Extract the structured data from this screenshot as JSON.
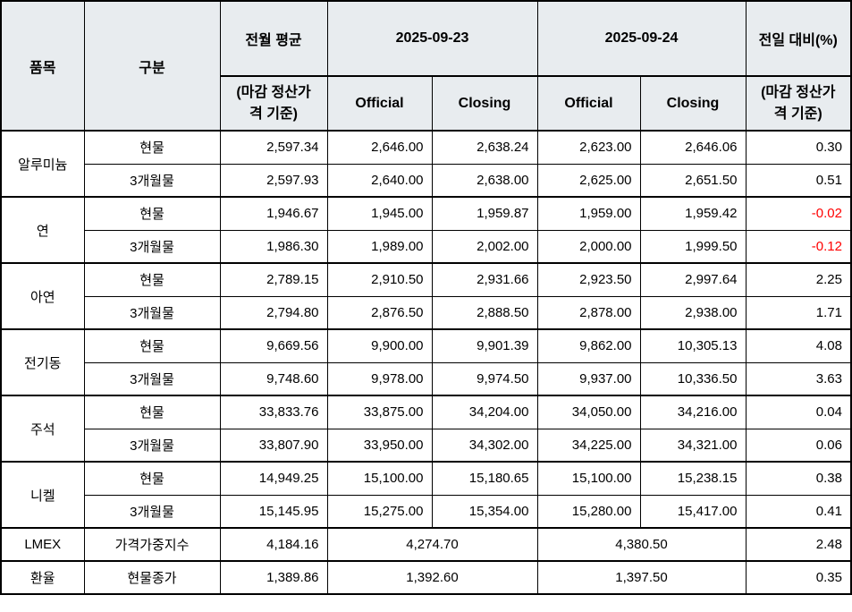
{
  "colors": {
    "header_bg": "#e8ecef",
    "border": "#000000",
    "text": "#000000",
    "negative": "#ff0000",
    "background": "#ffffff"
  },
  "chart_data": {
    "type": "table",
    "header": {
      "col_item": "품목",
      "col_category": "구분",
      "col_prev_avg": "전월 평균",
      "col_prev_avg_sub": "(마감 정산가\n격 기준)",
      "date1": "2025-09-23",
      "date2": "2025-09-24",
      "col_official": "Official",
      "col_closing": "Closing",
      "col_change": "전일 대비(%)",
      "col_change_sub": "(마감 정산가\n격 기준)"
    },
    "groups": [
      {
        "item": "알루미늄",
        "rows": [
          {
            "category": "현물",
            "prev_avg": "2,597.34",
            "d1_official": "2,646.00",
            "d1_closing": "2,638.24",
            "d2_official": "2,623.00",
            "d2_closing": "2,646.06",
            "change": "0.30",
            "negative": false
          },
          {
            "category": "3개월물",
            "prev_avg": "2,597.93",
            "d1_official": "2,640.00",
            "d1_closing": "2,638.00",
            "d2_official": "2,625.00",
            "d2_closing": "2,651.50",
            "change": "0.51",
            "negative": false
          }
        ]
      },
      {
        "item": "연",
        "rows": [
          {
            "category": "현물",
            "prev_avg": "1,946.67",
            "d1_official": "1,945.00",
            "d1_closing": "1,959.87",
            "d2_official": "1,959.00",
            "d2_closing": "1,959.42",
            "change": "-0.02",
            "negative": true
          },
          {
            "category": "3개월물",
            "prev_avg": "1,986.30",
            "d1_official": "1,989.00",
            "d1_closing": "2,002.00",
            "d2_official": "2,000.00",
            "d2_closing": "1,999.50",
            "change": "-0.12",
            "negative": true
          }
        ]
      },
      {
        "item": "아연",
        "rows": [
          {
            "category": "현물",
            "prev_avg": "2,789.15",
            "d1_official": "2,910.50",
            "d1_closing": "2,931.66",
            "d2_official": "2,923.50",
            "d2_closing": "2,997.64",
            "change": "2.25",
            "negative": false
          },
          {
            "category": "3개월물",
            "prev_avg": "2,794.80",
            "d1_official": "2,876.50",
            "d1_closing": "2,888.50",
            "d2_official": "2,878.00",
            "d2_closing": "2,938.00",
            "change": "1.71",
            "negative": false
          }
        ]
      },
      {
        "item": "전기동",
        "rows": [
          {
            "category": "현물",
            "prev_avg": "9,669.56",
            "d1_official": "9,900.00",
            "d1_closing": "9,901.39",
            "d2_official": "9,862.00",
            "d2_closing": "10,305.13",
            "change": "4.08",
            "negative": false
          },
          {
            "category": "3개월물",
            "prev_avg": "9,748.60",
            "d1_official": "9,978.00",
            "d1_closing": "9,974.50",
            "d2_official": "9,937.00",
            "d2_closing": "10,336.50",
            "change": "3.63",
            "negative": false
          }
        ]
      },
      {
        "item": "주석",
        "rows": [
          {
            "category": "현물",
            "prev_avg": "33,833.76",
            "d1_official": "33,875.00",
            "d1_closing": "34,204.00",
            "d2_official": "34,050.00",
            "d2_closing": "34,216.00",
            "change": "0.04",
            "negative": false
          },
          {
            "category": "3개월물",
            "prev_avg": "33,807.90",
            "d1_official": "33,950.00",
            "d1_closing": "34,302.00",
            "d2_official": "34,225.00",
            "d2_closing": "34,321.00",
            "change": "0.06",
            "negative": false
          }
        ]
      },
      {
        "item": "니켈",
        "rows": [
          {
            "category": "현물",
            "prev_avg": "14,949.25",
            "d1_official": "15,100.00",
            "d1_closing": "15,180.65",
            "d2_official": "15,100.00",
            "d2_closing": "15,238.15",
            "change": "0.38",
            "negative": false
          },
          {
            "category": "3개월물",
            "prev_avg": "15,145.95",
            "d1_official": "15,275.00",
            "d1_closing": "15,354.00",
            "d2_official": "15,280.00",
            "d2_closing": "15,417.00",
            "change": "0.41",
            "negative": false
          }
        ]
      },
      {
        "item": "LMEX",
        "rows": [
          {
            "category": "가격가중지수",
            "prev_avg": "4,184.16",
            "d1_merged": "4,274.70",
            "d2_merged": "4,380.50",
            "change": "2.48",
            "negative": false
          }
        ]
      },
      {
        "item": "환율",
        "rows": [
          {
            "category": "현물종가",
            "prev_avg": "1,389.86",
            "d1_merged": "1,392.60",
            "d2_merged": "1,397.50",
            "change": "0.35",
            "negative": false
          }
        ]
      }
    ]
  }
}
